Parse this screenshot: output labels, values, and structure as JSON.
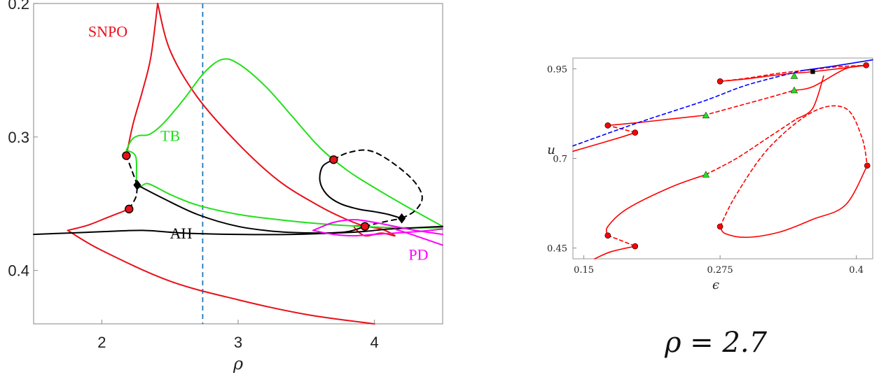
{
  "chart_data": [
    {
      "type": "line",
      "xlabel": "ρ",
      "ylabel": "",
      "xlim": [
        1.5,
        4.5
      ],
      "ylim": [
        0.2,
        0.44
      ],
      "y_inverted": true,
      "x_ticks": [
        2,
        3,
        4
      ],
      "x_tick_labels": [
        "2",
        "3",
        "4"
      ],
      "y_ticks": [
        0.2,
        0.3,
        0.4
      ],
      "y_tick_labels": [
        "0.2",
        "0.3",
        "0.4"
      ],
      "vline": {
        "x": 2.74,
        "style": "dashed",
        "color": "#1f77b4"
      },
      "colors": {
        "SNPO": "#e8101a",
        "TB": "#22e01a",
        "AH": "#000000",
        "PD": "#ff00ff"
      },
      "annotations": [
        {
          "text": "SNPO",
          "x": 1.9,
          "y": 0.225,
          "color": "#e8101a"
        },
        {
          "text": "TB",
          "x": 2.43,
          "y": 0.303,
          "color": "#22e01a"
        },
        {
          "text": "AH",
          "x": 2.5,
          "y": 0.376,
          "color": "#000000"
        },
        {
          "text": "PD",
          "x": 4.25,
          "y": 0.392,
          "color": "#ff00ff"
        }
      ],
      "series": [
        {
          "name": "SNPO",
          "color": "#e8101a",
          "style": "solid",
          "x": [
            1.75,
            1.9,
            2.05,
            2.2
          ],
          "y": [
            0.37,
            0.366,
            0.36,
            0.354
          ]
        },
        {
          "name": "SNPO",
          "color": "#e8101a",
          "style": "solid",
          "x": [
            1.75,
            2.0,
            2.5,
            3.0,
            3.5,
            4.0
          ],
          "y": [
            0.37,
            0.385,
            0.408,
            0.422,
            0.433,
            0.44
          ]
        },
        {
          "name": "SNPO",
          "color": "#e8101a",
          "style": "solid",
          "x": [
            2.18,
            2.23,
            2.3,
            2.36,
            2.41
          ],
          "y": [
            0.314,
            0.29,
            0.265,
            0.24,
            0.2
          ]
        },
        {
          "name": "SNPO",
          "color": "#e8101a",
          "style": "solid",
          "x": [
            2.41,
            2.5,
            2.7,
            3.0,
            3.3,
            3.6,
            3.8,
            3.93
          ],
          "y": [
            0.2,
            0.235,
            0.27,
            0.305,
            0.333,
            0.352,
            0.362,
            0.367
          ]
        },
        {
          "name": "SNPO",
          "color": "#e8101a",
          "style": "solid",
          "x": [
            3.93,
            4.05,
            4.15,
            4.05,
            3.93,
            3.85,
            3.93
          ],
          "y": [
            0.367,
            0.369,
            0.374,
            0.372,
            0.374,
            0.367,
            0.367
          ]
        },
        {
          "name": "TB",
          "color": "#22e01a",
          "style": "solid",
          "x": [
            2.18,
            2.22,
            2.27,
            2.35,
            2.45,
            2.6,
            2.75,
            2.88,
            3.0,
            3.2,
            3.4,
            3.6,
            3.8,
            4.0,
            4.2,
            4.5
          ],
          "y": [
            0.31,
            0.302,
            0.299,
            0.298,
            0.29,
            0.272,
            0.252,
            0.242,
            0.245,
            0.262,
            0.285,
            0.308,
            0.325,
            0.338,
            0.35,
            0.367
          ]
        },
        {
          "name": "TB",
          "color": "#22e01a",
          "style": "solid",
          "x": [
            2.18,
            2.25,
            2.26,
            2.34,
            2.5,
            2.7,
            3.0,
            3.3,
            3.6,
            3.9,
            4.2,
            4.5
          ],
          "y": [
            0.31,
            0.315,
            0.337,
            0.335,
            0.343,
            0.351,
            0.358,
            0.362,
            0.365,
            0.367,
            0.368,
            0.368
          ]
        },
        {
          "name": "AH",
          "color": "#000000",
          "style": "solid",
          "x": [
            1.5,
            1.75,
            2.0,
            2.3,
            2.6,
            3.0,
            3.4,
            3.7,
            3.9,
            4.1,
            4.3,
            4.5
          ],
          "y": [
            0.373,
            0.372,
            0.371,
            0.37,
            0.372,
            0.373,
            0.373,
            0.372,
            0.371,
            0.369,
            0.368,
            0.367
          ]
        },
        {
          "name": "AH",
          "color": "#000000",
          "style": "solid",
          "x": [
            2.26,
            2.45,
            2.7,
            3.0,
            3.3,
            3.6,
            3.8,
            3.93
          ],
          "y": [
            0.336,
            0.346,
            0.358,
            0.367,
            0.371,
            0.372,
            0.371,
            0.367
          ]
        },
        {
          "name": "AH",
          "color": "#000000",
          "style": "solid",
          "x": [
            3.7,
            3.62,
            3.6,
            3.65,
            3.75,
            3.88,
            4.0,
            4.1,
            4.2
          ],
          "y": [
            0.317,
            0.322,
            0.333,
            0.343,
            0.35,
            0.354,
            0.356,
            0.358,
            0.361
          ]
        },
        {
          "name": "AH",
          "color": "#000000",
          "style": "dashed",
          "x": [
            2.2,
            2.25,
            2.26
          ],
          "y": [
            0.354,
            0.345,
            0.336
          ]
        },
        {
          "name": "AH",
          "color": "#000000",
          "style": "dashed",
          "x": [
            2.26,
            2.22,
            2.18
          ],
          "y": [
            0.336,
            0.325,
            0.314
          ]
        },
        {
          "name": "AH",
          "color": "#000000",
          "style": "dashed",
          "x": [
            3.7,
            3.8,
            3.95,
            4.1,
            4.28,
            4.35,
            4.3,
            4.2
          ],
          "y": [
            0.317,
            0.312,
            0.31,
            0.317,
            0.332,
            0.345,
            0.355,
            0.361
          ]
        },
        {
          "name": "AH",
          "color": "#000000",
          "style": "dashed",
          "x": [
            3.93,
            4.05,
            4.2
          ],
          "y": [
            0.367,
            0.364,
            0.361
          ]
        },
        {
          "name": "PD",
          "color": "#ff00ff",
          "style": "solid",
          "x": [
            3.55,
            3.7,
            3.85,
            4.0,
            4.15,
            4.3,
            4.5
          ],
          "y": [
            0.37,
            0.364,
            0.362,
            0.364,
            0.367,
            0.37,
            0.373
          ]
        },
        {
          "name": "PD",
          "color": "#ff00ff",
          "style": "solid",
          "x": [
            3.55,
            3.7,
            3.85,
            4.0,
            4.15,
            4.3,
            4.5
          ],
          "y": [
            0.37,
            0.373,
            0.374,
            0.373,
            0.372,
            0.371,
            0.369
          ]
        },
        {
          "name": "PD",
          "color": "#ff00ff",
          "style": "solid",
          "x": [
            4.15,
            4.3,
            4.5
          ],
          "y": [
            0.369,
            0.374,
            0.381
          ]
        }
      ],
      "markers": [
        {
          "type": "circle",
          "x": 2.18,
          "y": 0.314,
          "color": "#e8101a"
        },
        {
          "type": "circle",
          "x": 2.2,
          "y": 0.354,
          "color": "#e8101a"
        },
        {
          "type": "circle",
          "x": 3.7,
          "y": 0.317,
          "color": "#e8101a"
        },
        {
          "type": "circle",
          "x": 3.93,
          "y": 0.367,
          "color": "#e8101a"
        },
        {
          "type": "diamond",
          "x": 2.26,
          "y": 0.336,
          "color": "#000000"
        },
        {
          "type": "diamond",
          "x": 4.2,
          "y": 0.361,
          "color": "#000000"
        }
      ]
    },
    {
      "type": "line",
      "xlabel": "ϵ",
      "ylabel": "u",
      "xlim": [
        0.14,
        0.415
      ],
      "ylim": [
        0.42,
        0.98
      ],
      "x_ticks": [
        0.15,
        0.275,
        0.4
      ],
      "x_tick_labels": [
        "0.15",
        "0.275",
        "0.4"
      ],
      "y_ticks": [
        0.45,
        0.7,
        0.95
      ],
      "y_tick_labels": [
        "0.45",
        "0.7",
        "0.95"
      ],
      "caption": "ρ = 2.7",
      "series": [
        {
          "color": "#ff0000",
          "style": "solid",
          "x": [
            0.14,
            0.165,
            0.185,
            0.197
          ],
          "y": [
            0.72,
            0.742,
            0.76,
            0.772
          ]
        },
        {
          "color": "#ff0000",
          "style": "dashed",
          "x": [
            0.197,
            0.185,
            0.172
          ],
          "y": [
            0.772,
            0.782,
            0.792
          ]
        },
        {
          "color": "#ff0000",
          "style": "solid",
          "x": [
            0.172,
            0.2,
            0.23,
            0.26
          ],
          "y": [
            0.792,
            0.8,
            0.81,
            0.82
          ]
        },
        {
          "color": "#ff0000",
          "style": "dashed",
          "x": [
            0.26,
            0.29,
            0.32,
            0.343
          ],
          "y": [
            0.82,
            0.845,
            0.87,
            0.89
          ]
        },
        {
          "color": "#ff0000",
          "style": "solid",
          "x": [
            0.343,
            0.36,
            0.39,
            0.409
          ],
          "y": [
            0.89,
            0.9,
            0.95,
            0.96
          ]
        },
        {
          "color": "#ff0000",
          "style": "solid",
          "x": [
            0.275,
            0.3,
            0.32,
            0.34,
            0.36,
            0.41
          ],
          "y": [
            0.915,
            0.922,
            0.93,
            0.937,
            0.942,
            0.96
          ]
        },
        {
          "color": "#ff0000",
          "style": "dashed",
          "x": [
            0.275,
            0.3,
            0.33,
            0.36,
            0.38,
            0.409
          ],
          "y": [
            0.915,
            0.924,
            0.938,
            0.948,
            0.955,
            0.96
          ]
        },
        {
          "color": "#ff0000",
          "style": "solid",
          "x": [
            0.172,
            0.172,
            0.19,
            0.23,
            0.262
          ],
          "y": [
            0.485,
            0.51,
            0.56,
            0.62,
            0.655
          ]
        },
        {
          "color": "#ff0000",
          "style": "dashed",
          "x": [
            0.262,
            0.29,
            0.32,
            0.345
          ],
          "y": [
            0.655,
            0.7,
            0.76,
            0.81
          ]
        },
        {
          "color": "#ff0000",
          "style": "solid",
          "x": [
            0.345,
            0.36,
            0.37
          ],
          "y": [
            0.81,
            0.84,
            0.93
          ]
        },
        {
          "color": "#ff0000",
          "style": "dashed",
          "x": [
            0.172,
            0.185,
            0.197
          ],
          "y": [
            0.485,
            0.47,
            0.455
          ]
        },
        {
          "color": "#ff0000",
          "style": "solid",
          "x": [
            0.197,
            0.175,
            0.16
          ],
          "y": [
            0.455,
            0.44,
            0.42
          ]
        },
        {
          "color": "#ff0000",
          "style": "solid",
          "x": [
            0.275,
            0.28,
            0.3,
            0.33,
            0.36,
            0.39,
            0.41
          ],
          "y": [
            0.51,
            0.49,
            0.48,
            0.495,
            0.53,
            0.57,
            0.68
          ]
        },
        {
          "color": "#ff0000",
          "style": "dashed",
          "x": [
            0.275,
            0.29,
            0.32,
            0.36,
            0.39,
            0.405,
            0.41
          ],
          "y": [
            0.51,
            0.6,
            0.73,
            0.83,
            0.84,
            0.76,
            0.68
          ]
        },
        {
          "color": "#0000ff",
          "style": "solid",
          "x": [
            0.35,
            0.38,
            0.415
          ],
          "y": [
            0.945,
            0.958,
            0.975
          ]
        },
        {
          "color": "#0000ff",
          "style": "dashed",
          "x": [
            0.14,
            0.2,
            0.26,
            0.3,
            0.35
          ],
          "y": [
            0.735,
            0.8,
            0.86,
            0.905,
            0.945
          ]
        }
      ],
      "markers": [
        {
          "type": "circle",
          "x": 0.172,
          "y": 0.792,
          "color": "#ff0000"
        },
        {
          "type": "circle",
          "x": 0.197,
          "y": 0.772,
          "color": "#ff0000"
        },
        {
          "type": "circle",
          "x": 0.275,
          "y": 0.915,
          "color": "#ff0000"
        },
        {
          "type": "circle",
          "x": 0.409,
          "y": 0.96,
          "color": "#ff0000"
        },
        {
          "type": "circle",
          "x": 0.275,
          "y": 0.51,
          "color": "#ff0000"
        },
        {
          "type": "circle",
          "x": 0.41,
          "y": 0.68,
          "color": "#ff0000"
        },
        {
          "type": "circle",
          "x": 0.172,
          "y": 0.485,
          "color": "#ff0000"
        },
        {
          "type": "circle",
          "x": 0.197,
          "y": 0.455,
          "color": "#ff0000"
        },
        {
          "type": "triangle",
          "x": 0.262,
          "y": 0.82,
          "color": "#22e01a"
        },
        {
          "type": "triangle",
          "x": 0.262,
          "y": 0.655,
          "color": "#22e01a"
        },
        {
          "type": "triangle",
          "x": 0.343,
          "y": 0.93,
          "color": "#22e01a"
        },
        {
          "type": "triangle",
          "x": 0.343,
          "y": 0.89,
          "color": "#22e01a"
        },
        {
          "type": "square",
          "x": 0.36,
          "y": 0.942,
          "color": "#000000"
        }
      ]
    }
  ]
}
